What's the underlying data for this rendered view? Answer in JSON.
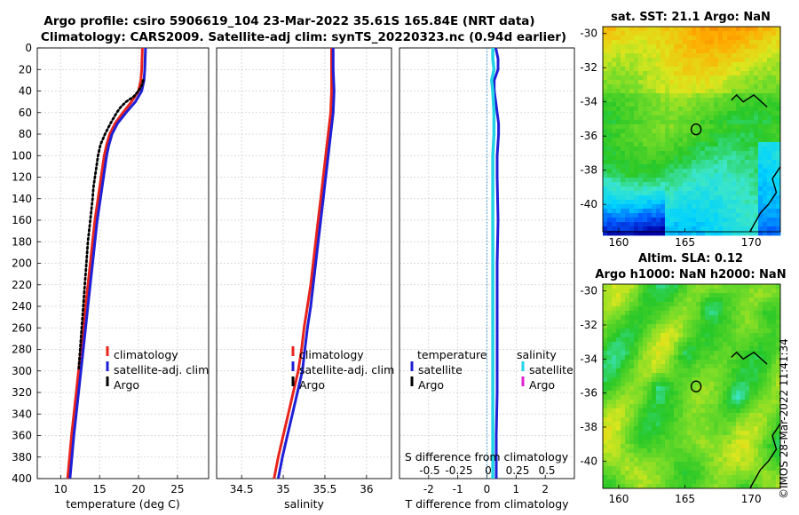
{
  "header": {
    "title_line1": "Argo profile: csiro 5906619_104 23-Mar-2022 35.61S 165.84E (NRT data)",
    "title_line2": "Climatology: CARS2009. Satellite-adj clim: synTS_20220323.nc (0.94d earlier)"
  },
  "colors": {
    "climatology": "#e8231c",
    "satellite": "#1f1fd6",
    "argo": "#000000",
    "salinity_satellite": "#22d3e6",
    "salinity_argo": "#e020d0"
  },
  "depth_ticks": [
    "0",
    "20",
    "40",
    "60",
    "80",
    "100",
    "120",
    "140",
    "160",
    "180",
    "200",
    "220",
    "240",
    "260",
    "280",
    "300",
    "320",
    "340",
    "360",
    "380",
    "400"
  ],
  "chart_data": [
    {
      "type": "line",
      "title": "",
      "xlabel": "temperature (deg C)",
      "ylabel": "",
      "xlim": [
        7,
        29
      ],
      "ylim": [
        400,
        0
      ],
      "xticks": [
        "10",
        "15",
        "20",
        "25"
      ],
      "legend": [
        "climatology",
        "satellite-adj. clim",
        "Argo"
      ],
      "series": [
        {
          "name": "climatology",
          "depth": [
            0,
            20,
            30,
            40,
            50,
            60,
            70,
            80,
            90,
            100,
            120,
            140,
            160,
            180,
            200,
            240,
            280,
            320,
            360,
            400
          ],
          "values": [
            20.5,
            20.4,
            20.3,
            20.0,
            19.1,
            18.0,
            17.0,
            16.3,
            15.9,
            15.6,
            15.2,
            14.8,
            14.4,
            14.1,
            13.8,
            13.2,
            12.6,
            12.0,
            11.4,
            10.9
          ]
        },
        {
          "name": "satellite-adj. clim",
          "depth": [
            0,
            20,
            30,
            40,
            50,
            60,
            70,
            80,
            90,
            100,
            120,
            140,
            160,
            180,
            200,
            240,
            280,
            320,
            360,
            400
          ],
          "values": [
            20.9,
            20.8,
            20.7,
            20.4,
            19.6,
            18.4,
            17.3,
            16.6,
            16.2,
            15.9,
            15.5,
            15.1,
            14.7,
            14.4,
            14.1,
            13.5,
            12.9,
            12.3,
            11.7,
            11.2
          ]
        },
        {
          "name": "Argo",
          "depth": [
            30,
            35,
            40,
            45,
            50,
            55,
            60,
            65,
            70,
            80,
            90,
            100,
            110,
            120,
            130,
            140,
            160,
            180,
            200,
            220,
            240,
            260,
            280,
            300
          ],
          "values": [
            20.6,
            20.4,
            20.0,
            19.4,
            18.4,
            17.7,
            17.2,
            16.8,
            16.4,
            15.7,
            15.1,
            14.8,
            14.6,
            14.4,
            14.2,
            14.1,
            13.8,
            13.5,
            13.3,
            13.1,
            12.9,
            12.7,
            12.5,
            12.3
          ]
        }
      ]
    },
    {
      "type": "line",
      "title": "",
      "xlabel": "salinity",
      "ylabel": "",
      "xlim": [
        34.2,
        36.3
      ],
      "ylim": [
        400,
        0
      ],
      "xticks": [
        "34.5",
        "35",
        "35.5",
        "36"
      ],
      "legend": [
        "climatology",
        "satellite-adj. clim",
        "Argo"
      ],
      "series": [
        {
          "name": "climatology",
          "depth": [
            0,
            20,
            40,
            60,
            80,
            100,
            120,
            140,
            160,
            180,
            200,
            220,
            240,
            260,
            280,
            300,
            320,
            340,
            360,
            380,
            400
          ],
          "values": [
            35.58,
            35.58,
            35.58,
            35.57,
            35.54,
            35.51,
            35.48,
            35.45,
            35.42,
            35.39,
            35.36,
            35.33,
            35.29,
            35.25,
            35.22,
            35.18,
            35.12,
            35.06,
            35.0,
            34.94,
            34.89
          ]
        },
        {
          "name": "satellite-adj. clim",
          "depth": [
            0,
            20,
            40,
            60,
            80,
            100,
            120,
            140,
            160,
            180,
            200,
            220,
            240,
            260,
            280,
            300,
            320,
            340,
            360,
            380,
            400
          ],
          "values": [
            35.6,
            35.6,
            35.61,
            35.6,
            35.57,
            35.54,
            35.51,
            35.48,
            35.45,
            35.42,
            35.39,
            35.36,
            35.33,
            35.29,
            35.26,
            35.23,
            35.17,
            35.11,
            35.05,
            34.99,
            34.94
          ]
        }
      ]
    },
    {
      "type": "line",
      "title": "",
      "xlabel": "T difference from climatology",
      "ylabel": "",
      "xlim": [
        -3,
        3
      ],
      "ylim": [
        400,
        0
      ],
      "xticks": [
        "-2",
        "-1",
        "0",
        "1",
        "2"
      ],
      "secondary_axis_label": "S difference from climatology",
      "secondary_xticks": [
        "-0.5",
        "-0.25",
        "0",
        "0.25",
        "0.5"
      ],
      "legend_left_title": "temperature",
      "legend_right_title": "salinity",
      "legend": [
        "satellite",
        "Argo",
        "satellite",
        "Argo"
      ],
      "series": [
        {
          "name": "temperature satellite",
          "depth": [
            0,
            10,
            20,
            30,
            40,
            50,
            60,
            70,
            80,
            100,
            120,
            160,
            200,
            240,
            280,
            320,
            360,
            400
          ],
          "values": [
            0.3,
            0.38,
            0.38,
            0.25,
            0.25,
            0.3,
            0.35,
            0.4,
            0.4,
            0.35,
            0.35,
            0.38,
            0.35,
            0.35,
            0.35,
            0.35,
            0.32,
            0.32
          ]
        },
        {
          "name": "salinity satellite",
          "depth": [
            0,
            10,
            20,
            30,
            40,
            60,
            80,
            100,
            140,
            200,
            260,
            320,
            400
          ],
          "values": [
            0.05,
            0.05,
            0.06,
            0.04,
            0.05,
            0.06,
            0.06,
            0.05,
            0.05,
            0.05,
            0.05,
            0.05,
            0.05
          ]
        }
      ]
    }
  ],
  "maps": [
    {
      "title": "sat. SST: 21.1 Argo: NaN",
      "title_line2": "",
      "xticks": [
        "160",
        "165",
        "170"
      ],
      "yticks": [
        "-30",
        "-32",
        "-34",
        "-36",
        "-38",
        "-40"
      ],
      "lon_range": [
        158.8,
        172.2
      ],
      "lat_range": [
        -41.6,
        -29.6
      ],
      "marker": {
        "lon": 165.84,
        "lat": -35.61
      }
    },
    {
      "title": "Altim. SLA: 0.12",
      "title_line2": "Argo h1000: NaN h2000: NaN",
      "xticks": [
        "160",
        "165",
        "170"
      ],
      "yticks": [
        "-30",
        "-32",
        "-34",
        "-36",
        "-38",
        "-40"
      ],
      "lon_range": [
        158.8,
        172.2
      ],
      "lat_range": [
        -41.6,
        -29.6
      ],
      "marker": {
        "lon": 165.84,
        "lat": -35.61
      }
    }
  ],
  "footer": {
    "stamp": "©IMOS 28-Mar-2022 11:41:34"
  }
}
